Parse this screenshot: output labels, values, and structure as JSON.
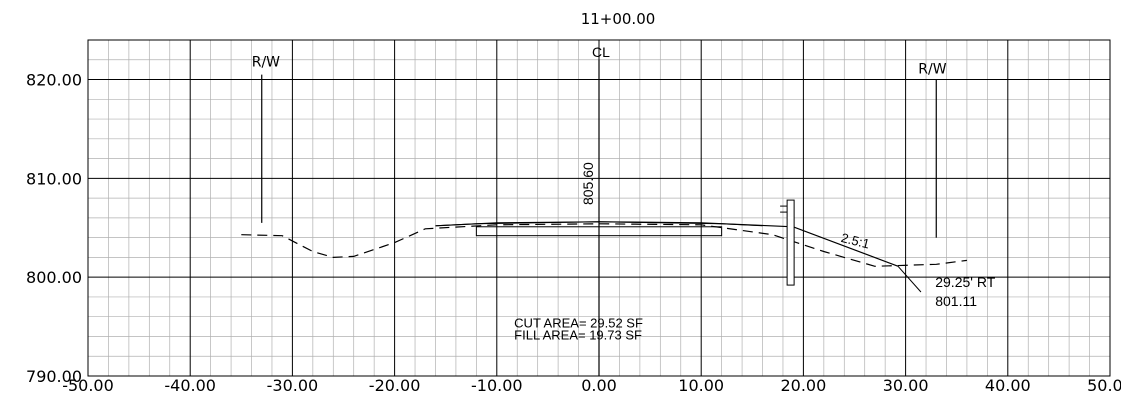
{
  "station": "11+00.00",
  "centerline_label": "CL",
  "row_left_label": "R/W",
  "row_right_label": "R/W",
  "centerline_elevation": "805.60",
  "slope_label": "2.5:1",
  "catch_point": {
    "offset_label": "29.25' RT",
    "elevation_label": "801.11"
  },
  "areas": {
    "cut": "CUT AREA= 29.52 SF",
    "fill": "FILL AREA= 19.73 SF"
  },
  "x_ticks": [
    "-50.00",
    "-40.00",
    "-30.00",
    "-20.00",
    "-10.00",
    "0.00",
    "10.00",
    "20.00",
    "30.00",
    "40.00",
    "50.00"
  ],
  "y_ticks": [
    "820.00",
    "810.00",
    "800.00",
    "790.00"
  ],
  "chart_data": {
    "type": "cross-section",
    "xlim": [
      -50,
      50
    ],
    "ylim": [
      790,
      824
    ],
    "major_grid_x": 10,
    "major_grid_y": 10,
    "minor_grid_x": 2,
    "minor_grid_y": 2,
    "existing_ground": [
      [
        -35,
        804.3
      ],
      [
        -31,
        804.2
      ],
      [
        -28,
        802.6
      ],
      [
        -26,
        802.0
      ],
      [
        -24,
        802.1
      ],
      [
        -20,
        803.5
      ],
      [
        -17,
        804.9
      ],
      [
        -10,
        805.3
      ],
      [
        0,
        805.4
      ],
      [
        10,
        805.3
      ],
      [
        17,
        804.3
      ],
      [
        22,
        802.6
      ],
      [
        27,
        801.1
      ],
      [
        33,
        801.3
      ],
      [
        36,
        801.7
      ]
    ],
    "proposed_grade": [
      [
        -16,
        805.2
      ],
      [
        -10,
        805.5
      ],
      [
        0,
        805.6
      ],
      [
        10,
        805.5
      ],
      [
        19,
        805.1
      ],
      [
        29.25,
        801.11
      ]
    ],
    "pavement_top": [
      [
        -16,
        805.2
      ],
      [
        -12,
        805.4
      ],
      [
        0,
        805.6
      ],
      [
        12,
        805.4
      ],
      [
        16,
        805.2
      ]
    ],
    "pavement_box": {
      "x1": -12,
      "x2": 12,
      "y_top": 805.1,
      "y_bottom": 804.2
    },
    "curb": {
      "x": 18.7,
      "y_top": 807.8,
      "y_bottom": 799.2
    },
    "row_left": {
      "x": -33,
      "y_top": 820.5,
      "y_bottom": 805.5
    },
    "row_right": {
      "x": 33,
      "y_top": 820.0,
      "y_bottom": 804.0
    },
    "centerline": {
      "x": 0,
      "y_top": 822.0,
      "y_bottom": 790.0
    }
  }
}
